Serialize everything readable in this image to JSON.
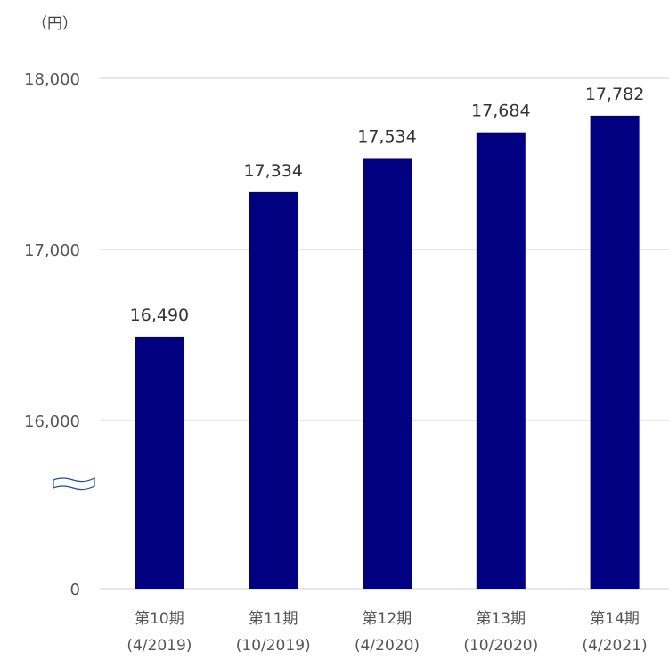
{
  "chart_data": {
    "type": "bar",
    "unit_label": "（円）",
    "categories": [
      "第10期",
      "第11期",
      "第12期",
      "第13期",
      "第14期"
    ],
    "category_sublabels": [
      "(4/2019)",
      "(10/2019)",
      "(4/2020)",
      "(10/2020)",
      "(4/2021)"
    ],
    "values": [
      16490,
      17334,
      17534,
      17684,
      17782
    ],
    "value_labels": [
      "16,490",
      "17,334",
      "17,534",
      "17,684",
      "17,782"
    ],
    "y_ticks": [
      {
        "value": 0,
        "label": "0"
      },
      {
        "value": 16000,
        "label": "16,000"
      },
      {
        "value": 17000,
        "label": "17,000"
      },
      {
        "value": 18000,
        "label": "18,000"
      }
    ],
    "axis_break": true,
    "grid": true,
    "colors": {
      "bar": "#000080",
      "grid": "#d9d9d9",
      "break_mark": "#1f4e9c"
    }
  }
}
